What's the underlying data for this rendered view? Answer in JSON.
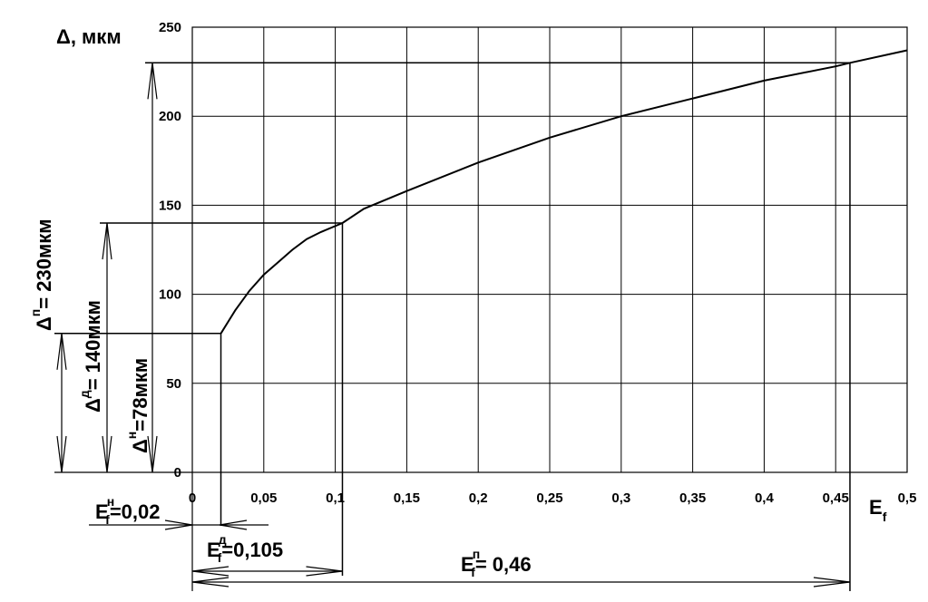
{
  "chart_data": {
    "type": "line",
    "title": "",
    "ylabel": "Δ, мкм",
    "xlabel_main": "E",
    "xlabel_sub": "f",
    "xlim": [
      0,
      0.5
    ],
    "ylim": [
      0,
      250
    ],
    "grid": true,
    "x_ticks": [
      "0",
      "0,05",
      "0,1",
      "0,15",
      "0,2",
      "0,25",
      "0,3",
      "0,35",
      "0,4",
      "0,45",
      "0,5"
    ],
    "x_tick_values": [
      0,
      0.05,
      0.1,
      0.15,
      0.2,
      0.25,
      0.3,
      0.35,
      0.4,
      0.45,
      0.5
    ],
    "y_ticks": [
      "0",
      "50",
      "100",
      "150",
      "200",
      "250"
    ],
    "y_tick_values": [
      0,
      50,
      100,
      150,
      200,
      250
    ],
    "series": [
      {
        "x": [
          0.02,
          0.03,
          0.04,
          0.05,
          0.06,
          0.07,
          0.08,
          0.09,
          0.105,
          0.12,
          0.15,
          0.2,
          0.25,
          0.3,
          0.35,
          0.4,
          0.45,
          0.46,
          0.5
        ],
        "y": [
          78,
          91,
          102,
          111,
          118,
          125,
          131,
          135,
          140,
          148,
          158,
          174,
          188,
          200,
          210,
          220,
          228,
          230,
          237
        ]
      }
    ],
    "reference_points": [
      {
        "x": 0.02,
        "y": 78
      },
      {
        "x": 0.105,
        "y": 140
      },
      {
        "x": 0.46,
        "y": 230
      }
    ],
    "annotations": {
      "delta_p": {
        "symbol": "Δ",
        "sup": "п",
        "text": "= 230мкм"
      },
      "delta_d": {
        "symbol": "Δ",
        "sup": "д",
        "text": "= 140мкм"
      },
      "delta_n": {
        "symbol": "Δ",
        "sup": "н",
        "text": "=78мкм"
      },
      "ef_n": {
        "main": "E",
        "sup": "н",
        "sub": "f",
        "text": "=0,02"
      },
      "ef_d": {
        "main": "E",
        "sup": "д",
        "sub": "f",
        "text": "=0,105"
      },
      "ef_p": {
        "main": "E",
        "sup": "п",
        "sub": "f",
        "text": "= 0,46"
      }
    }
  }
}
